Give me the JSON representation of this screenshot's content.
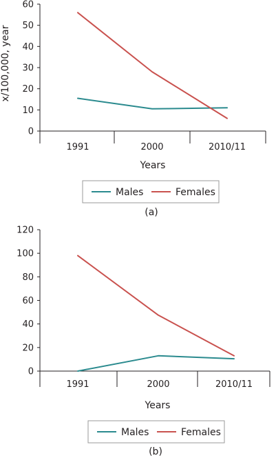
{
  "chart_data": [
    {
      "type": "line",
      "panel": "(a)",
      "categories": [
        "1991",
        "2000",
        "2010/11"
      ],
      "series": [
        {
          "name": "Males",
          "values": [
            15.5,
            10.5,
            11
          ],
          "color": "#2a8a8e"
        },
        {
          "name": "Females",
          "values": [
            56,
            28,
            6
          ],
          "color": "#c9514e"
        }
      ],
      "xlabel": "Years",
      "ylabel": "x/100,000, year",
      "ylim": [
        0,
        60
      ],
      "yticks": [
        0,
        10,
        20,
        30,
        40,
        50,
        60
      ],
      "grid": false,
      "legend_position": "bottom"
    },
    {
      "type": "line",
      "panel": "(b)",
      "categories": [
        "1991",
        "2000",
        "2010/11"
      ],
      "series": [
        {
          "name": "Males",
          "values": [
            0,
            13,
            10.5
          ],
          "color": "#2a8a8e"
        },
        {
          "name": "Females",
          "values": [
            98,
            47.5,
            13
          ],
          "color": "#c9514e"
        }
      ],
      "xlabel": "Years",
      "ylabel": "",
      "ylim": [
        0,
        120
      ],
      "yticks": [
        0,
        20,
        40,
        60,
        80,
        100,
        120
      ],
      "grid": false,
      "legend_position": "bottom"
    }
  ]
}
